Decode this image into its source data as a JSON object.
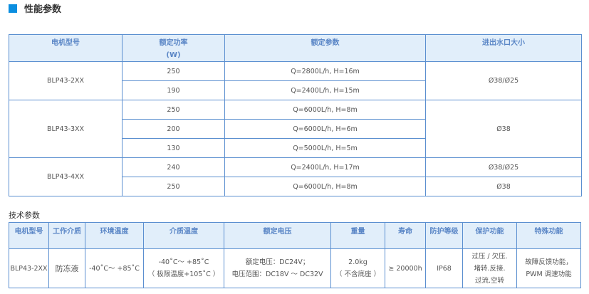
{
  "section_title": "性能参数",
  "accent": "#0a8ee0",
  "perf_table": {
    "headers": [
      "电机型号",
      "额定功率",
      "(W)",
      "额定参数",
      "进出水口大小"
    ],
    "groups": [
      {
        "model": "BLP43-2XX",
        "rows": [
          {
            "power": "250",
            "params": "Q=2800L/h, H=16m"
          },
          {
            "power": "190",
            "params": "Q=2400L/h, H=15m"
          }
        ]
      },
      {
        "model": "BLP43-3XX",
        "rows": [
          {
            "power": "250",
            "params": "Q=6000L/h, H=8m"
          },
          {
            "power": "200",
            "params": "Q=6000L/h, H=6m"
          },
          {
            "power": "130",
            "params": "Q=5000L/h, H=5m"
          }
        ]
      },
      {
        "model": "BLP43-4XX",
        "rows": [
          {
            "power": "240",
            "params": "Q=2400L/h, H=17m"
          },
          {
            "power": "250",
            "params": "Q=6000L/h, H=8m"
          }
        ]
      }
    ],
    "ports": [
      "Ø38/Ø25",
      "Ø38",
      "Ø38/Ø25",
      "Ø38"
    ]
  },
  "tech_title": "技术参数",
  "tech_table": {
    "headers": [
      "电机型号",
      "工作介质",
      "环境温度",
      "介质温度",
      "额定电压",
      "重量",
      "寿命",
      "防护等级",
      "保护功能",
      "特殊功能"
    ],
    "row": {
      "model": "BLP43-2XX",
      "medium": "防冻液",
      "ambient": "-40˚C～ +85˚C",
      "medium_temp": [
        "-40˚C～ +85˚C",
        "（ 极限温度+105˚C ）"
      ],
      "voltage": [
        "额定电压：DC24V；",
        "电压范围：DC18V ～ DC32V"
      ],
      "weight": [
        "2.0kg",
        "（ 不含底座 ）"
      ],
      "life": "≥ 20000h",
      "ip": "IP68",
      "protection": [
        "过压 / 欠压.",
        "堵转.反接.",
        "过流.空转"
      ],
      "special": [
        "故障反馈功能，",
        "PWM 调速功能"
      ]
    }
  }
}
